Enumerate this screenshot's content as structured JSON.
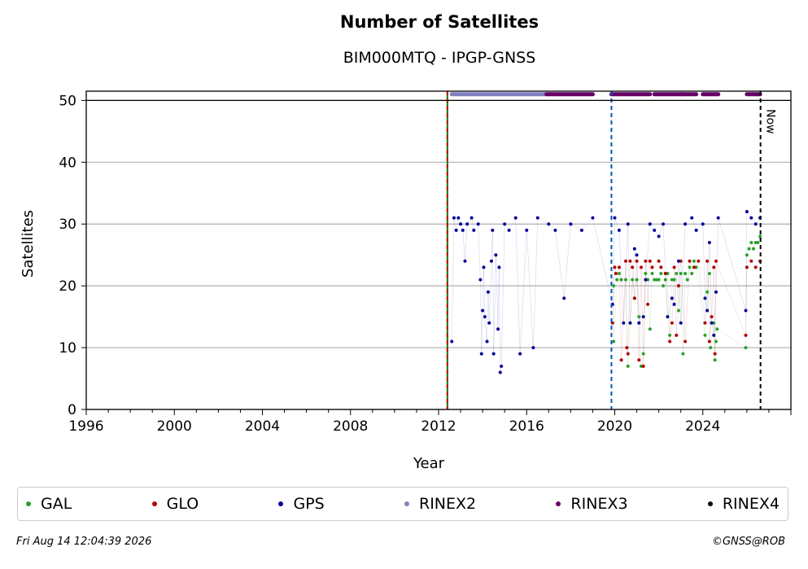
{
  "chart_data": {
    "type": "scatter",
    "title": "Number of Satellites",
    "subtitle": "BIM000MTQ - IPGP-GNSS",
    "xlabel": "Year",
    "ylabel": "Satellites",
    "xlim": [
      1996,
      2028
    ],
    "ylim": [
      0,
      51.5
    ],
    "x_ticks": [
      "1996",
      "2000",
      "2004",
      "2008",
      "2012",
      "2016",
      "2020",
      "2024"
    ],
    "y_ticks": [
      "0",
      "10",
      "20",
      "30",
      "40",
      "50"
    ],
    "grid": "horizontal",
    "legend_position": "bottom",
    "now_label": "Now",
    "vertical_lines": [
      {
        "x": 2012.4,
        "style": "dashed",
        "colors": [
          "#008000",
          "#cc0000"
        ]
      },
      {
        "x": 2019.85,
        "style": "dashed",
        "colors": [
          "#0055cc"
        ]
      },
      {
        "x": 2026.62,
        "style": "dashed",
        "colors": [
          "#000000"
        ],
        "label": "Now"
      }
    ],
    "series": [
      {
        "name": "GAL",
        "color": "#2ca02c",
        "points": [
          [
            2019.95,
            20
          ],
          [
            2019.95,
            11
          ],
          [
            2020.1,
            21
          ],
          [
            2020.2,
            22
          ],
          [
            2020.3,
            21
          ],
          [
            2020.5,
            21
          ],
          [
            2020.6,
            7
          ],
          [
            2020.7,
            14
          ],
          [
            2020.8,
            21
          ],
          [
            2020.9,
            18
          ],
          [
            2021.0,
            21
          ],
          [
            2021.1,
            15
          ],
          [
            2021.2,
            7
          ],
          [
            2021.3,
            9
          ],
          [
            2021.4,
            22
          ],
          [
            2021.5,
            21
          ],
          [
            2021.6,
            13
          ],
          [
            2021.7,
            22
          ],
          [
            2021.8,
            21
          ],
          [
            2021.9,
            21
          ],
          [
            2022.0,
            21
          ],
          [
            2022.1,
            22
          ],
          [
            2022.2,
            20
          ],
          [
            2022.3,
            21
          ],
          [
            2022.4,
            22
          ],
          [
            2022.5,
            12
          ],
          [
            2022.6,
            21
          ],
          [
            2022.7,
            21
          ],
          [
            2022.8,
            22
          ],
          [
            2022.9,
            16
          ],
          [
            2023.0,
            22
          ],
          [
            2023.1,
            9
          ],
          [
            2023.2,
            22
          ],
          [
            2023.3,
            21
          ],
          [
            2023.4,
            23
          ],
          [
            2023.5,
            22
          ],
          [
            2023.6,
            24
          ],
          [
            2023.7,
            23
          ],
          [
            2024.1,
            12
          ],
          [
            2024.2,
            19
          ],
          [
            2024.3,
            22
          ],
          [
            2024.35,
            10
          ],
          [
            2024.5,
            14
          ],
          [
            2024.55,
            8
          ],
          [
            2024.6,
            11
          ],
          [
            2024.65,
            13
          ],
          [
            2025.95,
            10
          ],
          [
            2026.0,
            25
          ],
          [
            2026.1,
            26
          ],
          [
            2026.2,
            27
          ],
          [
            2026.3,
            26
          ],
          [
            2026.4,
            27
          ],
          [
            2026.5,
            27
          ],
          [
            2026.6,
            28
          ]
        ]
      },
      {
        "name": "GLO",
        "color": "#b30000",
        "points": [
          [
            2019.9,
            14
          ],
          [
            2020.0,
            23
          ],
          [
            2020.05,
            22
          ],
          [
            2020.2,
            23
          ],
          [
            2020.3,
            8
          ],
          [
            2020.5,
            24
          ],
          [
            2020.55,
            10
          ],
          [
            2020.6,
            9
          ],
          [
            2020.7,
            24
          ],
          [
            2020.8,
            23
          ],
          [
            2020.9,
            18
          ],
          [
            2021.0,
            24
          ],
          [
            2021.1,
            8
          ],
          [
            2021.2,
            23
          ],
          [
            2021.3,
            7
          ],
          [
            2021.4,
            24
          ],
          [
            2021.5,
            17
          ],
          [
            2021.6,
            24
          ],
          [
            2021.7,
            23
          ],
          [
            2022.0,
            24
          ],
          [
            2022.1,
            23
          ],
          [
            2022.3,
            22
          ],
          [
            2022.5,
            11
          ],
          [
            2022.6,
            14
          ],
          [
            2022.7,
            23
          ],
          [
            2022.8,
            12
          ],
          [
            2022.9,
            20
          ],
          [
            2023.0,
            24
          ],
          [
            2023.2,
            11
          ],
          [
            2023.4,
            24
          ],
          [
            2023.6,
            23
          ],
          [
            2023.8,
            24
          ],
          [
            2024.1,
            14
          ],
          [
            2024.2,
            24
          ],
          [
            2024.3,
            11
          ],
          [
            2024.4,
            15
          ],
          [
            2024.5,
            23
          ],
          [
            2024.55,
            9
          ],
          [
            2024.6,
            24
          ],
          [
            2025.95,
            12
          ],
          [
            2026.0,
            23
          ],
          [
            2026.2,
            24
          ],
          [
            2026.4,
            23
          ],
          [
            2026.6,
            24
          ]
        ]
      },
      {
        "name": "GPS",
        "color": "#000099",
        "points": [
          [
            2012.6,
            11
          ],
          [
            2012.7,
            31
          ],
          [
            2012.8,
            29
          ],
          [
            2012.9,
            31
          ],
          [
            2013.0,
            30
          ],
          [
            2013.1,
            29
          ],
          [
            2013.2,
            24
          ],
          [
            2013.3,
            30
          ],
          [
            2013.5,
            31
          ],
          [
            2013.6,
            29
          ],
          [
            2013.8,
            30
          ],
          [
            2013.9,
            21
          ],
          [
            2013.95,
            9
          ],
          [
            2014.0,
            16
          ],
          [
            2014.05,
            23
          ],
          [
            2014.1,
            15
          ],
          [
            2014.2,
            11
          ],
          [
            2014.25,
            19
          ],
          [
            2014.3,
            14
          ],
          [
            2014.4,
            24
          ],
          [
            2014.45,
            29
          ],
          [
            2014.5,
            9
          ],
          [
            2014.6,
            25
          ],
          [
            2014.7,
            13
          ],
          [
            2014.75,
            23
          ],
          [
            2014.8,
            6
          ],
          [
            2014.85,
            7
          ],
          [
            2015.0,
            30
          ],
          [
            2015.2,
            29
          ],
          [
            2015.5,
            31
          ],
          [
            2015.7,
            9
          ],
          [
            2016.0,
            29
          ],
          [
            2016.3,
            10
          ],
          [
            2016.5,
            31
          ],
          [
            2017.0,
            30
          ],
          [
            2017.3,
            29
          ],
          [
            2017.7,
            18
          ],
          [
            2018.0,
            30
          ],
          [
            2018.5,
            29
          ],
          [
            2019.0,
            31
          ],
          [
            2019.9,
            17
          ],
          [
            2020.0,
            31
          ],
          [
            2020.2,
            29
          ],
          [
            2020.4,
            14
          ],
          [
            2020.6,
            30
          ],
          [
            2020.7,
            14
          ],
          [
            2020.9,
            26
          ],
          [
            2021.0,
            25
          ],
          [
            2021.1,
            14
          ],
          [
            2021.3,
            15
          ],
          [
            2021.4,
            21
          ],
          [
            2021.6,
            30
          ],
          [
            2021.8,
            29
          ],
          [
            2022.0,
            28
          ],
          [
            2022.2,
            30
          ],
          [
            2022.4,
            15
          ],
          [
            2022.6,
            18
          ],
          [
            2022.7,
            17
          ],
          [
            2022.9,
            24
          ],
          [
            2023.0,
            14
          ],
          [
            2023.2,
            30
          ],
          [
            2023.5,
            31
          ],
          [
            2023.7,
            29
          ],
          [
            2024.0,
            30
          ],
          [
            2024.1,
            18
          ],
          [
            2024.2,
            16
          ],
          [
            2024.3,
            27
          ],
          [
            2024.4,
            14
          ],
          [
            2024.5,
            12
          ],
          [
            2024.6,
            19
          ],
          [
            2024.7,
            31
          ],
          [
            2025.95,
            16
          ],
          [
            2026.0,
            32
          ],
          [
            2026.2,
            31
          ],
          [
            2026.4,
            30
          ],
          [
            2026.6,
            31
          ]
        ]
      },
      {
        "name": "RINEX2",
        "color": "#8080c0",
        "segments": [
          [
            2012.6,
            2016.9
          ]
        ]
      },
      {
        "name": "RINEX3",
        "color": "#660066",
        "segments": [
          [
            2016.9,
            2019.0
          ],
          [
            2019.85,
            2021.6
          ],
          [
            2021.8,
            2023.0
          ],
          [
            2023.0,
            2023.7
          ],
          [
            2024.0,
            2024.7
          ],
          [
            2026.0,
            2026.6
          ]
        ]
      },
      {
        "name": "RINEX4",
        "color": "#1a0012",
        "segments": []
      }
    ]
  },
  "legend": [
    {
      "label": "GAL",
      "color": "#2ca02c"
    },
    {
      "label": "GLO",
      "color": "#b30000"
    },
    {
      "label": "GPS",
      "color": "#000099"
    },
    {
      "label": "RINEX2",
      "color": "#8080c0"
    },
    {
      "label": "RINEX3",
      "color": "#660066"
    },
    {
      "label": "RINEX4",
      "color": "#1a0012"
    }
  ],
  "footer": {
    "date": "Fri Aug 14 12:04:39 2026",
    "copyright": "©GNSS@ROB"
  }
}
